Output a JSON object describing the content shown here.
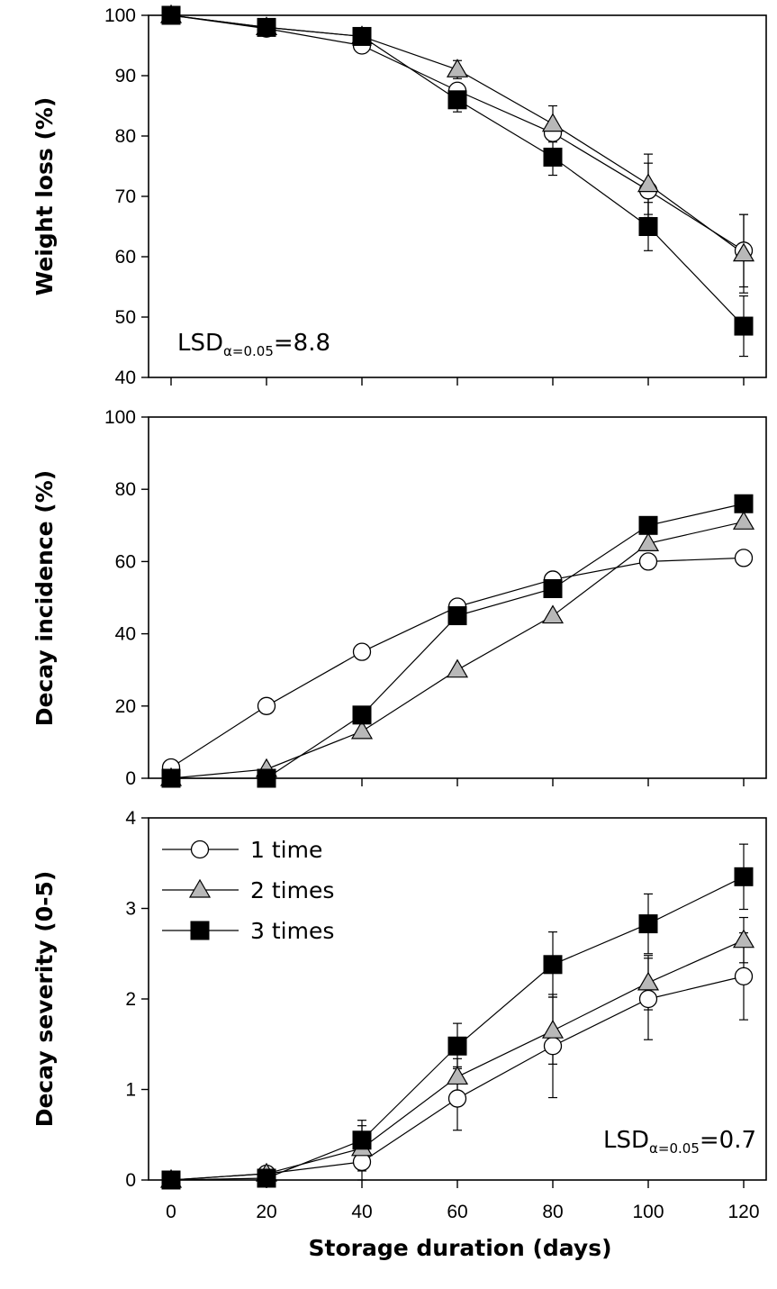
{
  "colors": {
    "circle_fill": "#ffffff",
    "triangle_fill": "#b8b8b8",
    "square_fill": "#000000",
    "line": "#000000"
  },
  "figure": {
    "xlabel": "Storage duration (days)",
    "x_ticks": [
      "0",
      "20",
      "40",
      "60",
      "80",
      "100",
      "120"
    ]
  },
  "legend": [
    {
      "name": "1 time",
      "marker": "circle"
    },
    {
      "name": "2 times",
      "marker": "triangle"
    },
    {
      "name": "3 times",
      "marker": "square"
    }
  ],
  "chart_data": [
    {
      "type": "line",
      "panel": "top",
      "title": "",
      "xlabel": "Storage duration (days)",
      "ylabel": "Weight loss (%)",
      "x": [
        0,
        20,
        40,
        60,
        80,
        100,
        120
      ],
      "xlim": [
        0,
        120
      ],
      "ylim": [
        40,
        100
      ],
      "y_ticks": [
        "40",
        "50",
        "60",
        "70",
        "80",
        "90",
        "100"
      ],
      "annotation": {
        "main": "LSD",
        "sub": "α=0.05",
        "value": "=8.8",
        "position": "bottom-left"
      },
      "series": [
        {
          "name": "1 time",
          "marker": "circle",
          "values": [
            100,
            97.8,
            95,
            87.5,
            80.5,
            71,
            61
          ],
          "errors": [
            0,
            0,
            0,
            0,
            0,
            4.5,
            6
          ]
        },
        {
          "name": "2 times",
          "marker": "triangle",
          "values": [
            100,
            98,
            96.5,
            91,
            82,
            72,
            60.5
          ],
          "errors": [
            0,
            0,
            0,
            1.5,
            3,
            5,
            6.5
          ]
        },
        {
          "name": "3 times",
          "marker": "square",
          "values": [
            100,
            98,
            96.5,
            86,
            76.5,
            65,
            48.5
          ],
          "errors": [
            0,
            0,
            0,
            2,
            3,
            4,
            5
          ]
        }
      ]
    },
    {
      "type": "line",
      "panel": "middle",
      "title": "",
      "xlabel": "Storage duration (days)",
      "ylabel": "Decay incidence (%)",
      "x": [
        0,
        20,
        40,
        60,
        80,
        100,
        120
      ],
      "xlim": [
        0,
        120
      ],
      "ylim": [
        0,
        100
      ],
      "y_ticks": [
        "0",
        "20",
        "40",
        "60",
        "80",
        "100"
      ],
      "series": [
        {
          "name": "1 time",
          "marker": "circle",
          "values": [
            3,
            20,
            35,
            47.5,
            55,
            60,
            61
          ],
          "errors": []
        },
        {
          "name": "2 times",
          "marker": "triangle",
          "values": [
            0,
            2.5,
            13,
            30,
            45,
            65,
            71
          ],
          "errors": []
        },
        {
          "name": "3 times",
          "marker": "square",
          "values": [
            0,
            0,
            17.5,
            45,
            52.5,
            70,
            76
          ],
          "errors": []
        }
      ]
    },
    {
      "type": "line",
      "panel": "bottom",
      "title": "",
      "xlabel": "Storage duration (days)",
      "ylabel": "Decay severity (0-5)",
      "x": [
        0,
        20,
        40,
        60,
        80,
        100,
        120
      ],
      "xlim": [
        0,
        120
      ],
      "ylim": [
        0,
        4
      ],
      "y_ticks": [
        "0",
        "1",
        "2",
        "3",
        "4"
      ],
      "legend_position": "top-left",
      "annotation": {
        "main": "LSD",
        "sub": "α=0.05",
        "value": "=0.7",
        "position": "bottom-right"
      },
      "series": [
        {
          "name": "1 time",
          "marker": "circle",
          "values": [
            0,
            0.07,
            0.2,
            0.9,
            1.48,
            2.0,
            2.25
          ],
          "errors": [
            0,
            0,
            0.2,
            0.35,
            0.57,
            0.45,
            0.48
          ]
        },
        {
          "name": "2 times",
          "marker": "triangle",
          "values": [
            0,
            0.07,
            0.35,
            1.14,
            1.65,
            2.18,
            2.65
          ],
          "errors": [
            0,
            0,
            0.25,
            0.2,
            0.37,
            0.3,
            0.25
          ]
        },
        {
          "name": "3 times",
          "marker": "square",
          "values": [
            0,
            0.02,
            0.44,
            1.48,
            2.38,
            2.83,
            3.35
          ],
          "errors": [
            0,
            0,
            0.22,
            0.25,
            0.36,
            0.33,
            0.36
          ]
        }
      ]
    }
  ]
}
